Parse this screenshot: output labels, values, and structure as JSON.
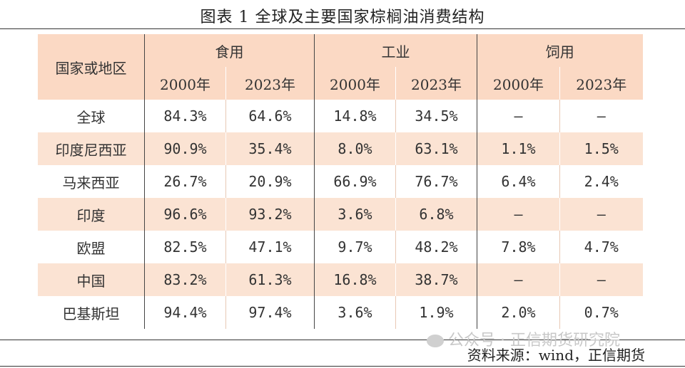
{
  "title": "图表 1  全球及主要国家棕榈油消费结构",
  "header": {
    "region_col": "国家或地区",
    "groups": [
      "食用",
      "工业",
      "饲用"
    ],
    "years": [
      "2000年",
      "2023年",
      "2000年",
      "2023年",
      "2000年",
      "2023年"
    ]
  },
  "rows": [
    {
      "region": "全球",
      "values": [
        "84.3%",
        "64.6%",
        "14.8%",
        "34.5%",
        "—",
        "—"
      ]
    },
    {
      "region": "印度尼西亚",
      "values": [
        "90.9%",
        "35.4%",
        "8.0%",
        "63.1%",
        "1.1%",
        "1.5%"
      ]
    },
    {
      "region": "马来西亚",
      "values": [
        "26.7%",
        "20.9%",
        "66.9%",
        "76.7%",
        "6.4%",
        "2.4%"
      ]
    },
    {
      "region": "印度",
      "values": [
        "96.6%",
        "93.2%",
        "3.6%",
        "6.8%",
        "—",
        "—"
      ]
    },
    {
      "region": "欧盟",
      "values": [
        "82.5%",
        "47.1%",
        "9.7%",
        "48.2%",
        "7.8%",
        "4.7%"
      ]
    },
    {
      "region": "中国",
      "values": [
        "83.2%",
        "61.3%",
        "16.8%",
        "38.7%",
        "—",
        "—"
      ]
    },
    {
      "region": "巴基斯坦",
      "values": [
        "94.4%",
        "97.4%",
        "3.6%",
        "1.9%",
        "2.0%",
        "0.7%"
      ]
    }
  ],
  "watermark": "公众号 · 正信期货研究院",
  "source": "资料来源：wind，正信期货"
}
